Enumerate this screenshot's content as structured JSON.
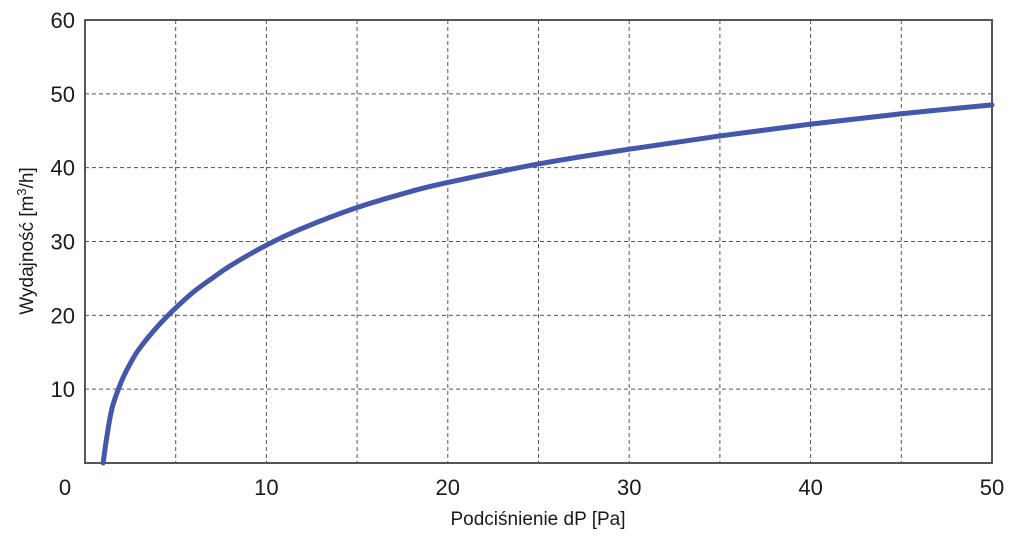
{
  "chart_data": {
    "type": "line",
    "title": "",
    "xlabel": "Podciśnienie dP [Pa]",
    "ylabel_parts": {
      "main": "Wydajność [m",
      "sup": "3",
      "tail": "/h]"
    },
    "xlim": [
      0,
      50
    ],
    "ylim": [
      0,
      60
    ],
    "x_ticks": [
      0,
      10,
      20,
      30,
      40,
      50
    ],
    "y_ticks": [
      10,
      20,
      30,
      40,
      50,
      60
    ],
    "x_grid": [
      5,
      10,
      15,
      20,
      25,
      30,
      35,
      40,
      45
    ],
    "y_grid": [
      10,
      20,
      30,
      40,
      50
    ],
    "grid": true,
    "legend": "none",
    "series": [
      {
        "color": "#4357ab",
        "x": [
          1,
          1.2,
          1.5,
          2,
          2.5,
          3,
          4,
          5,
          6,
          7,
          8,
          10,
          12,
          15,
          18,
          20,
          25,
          30,
          35,
          40,
          45,
          50
        ],
        "y": [
          0,
          3.5,
          7.5,
          11,
          13.5,
          15.5,
          18.5,
          21,
          23.2,
          25,
          26.7,
          29.5,
          31.8,
          34.6,
          36.8,
          38,
          40.5,
          42.5,
          44.3,
          45.9,
          47.3,
          48.5
        ]
      }
    ]
  }
}
